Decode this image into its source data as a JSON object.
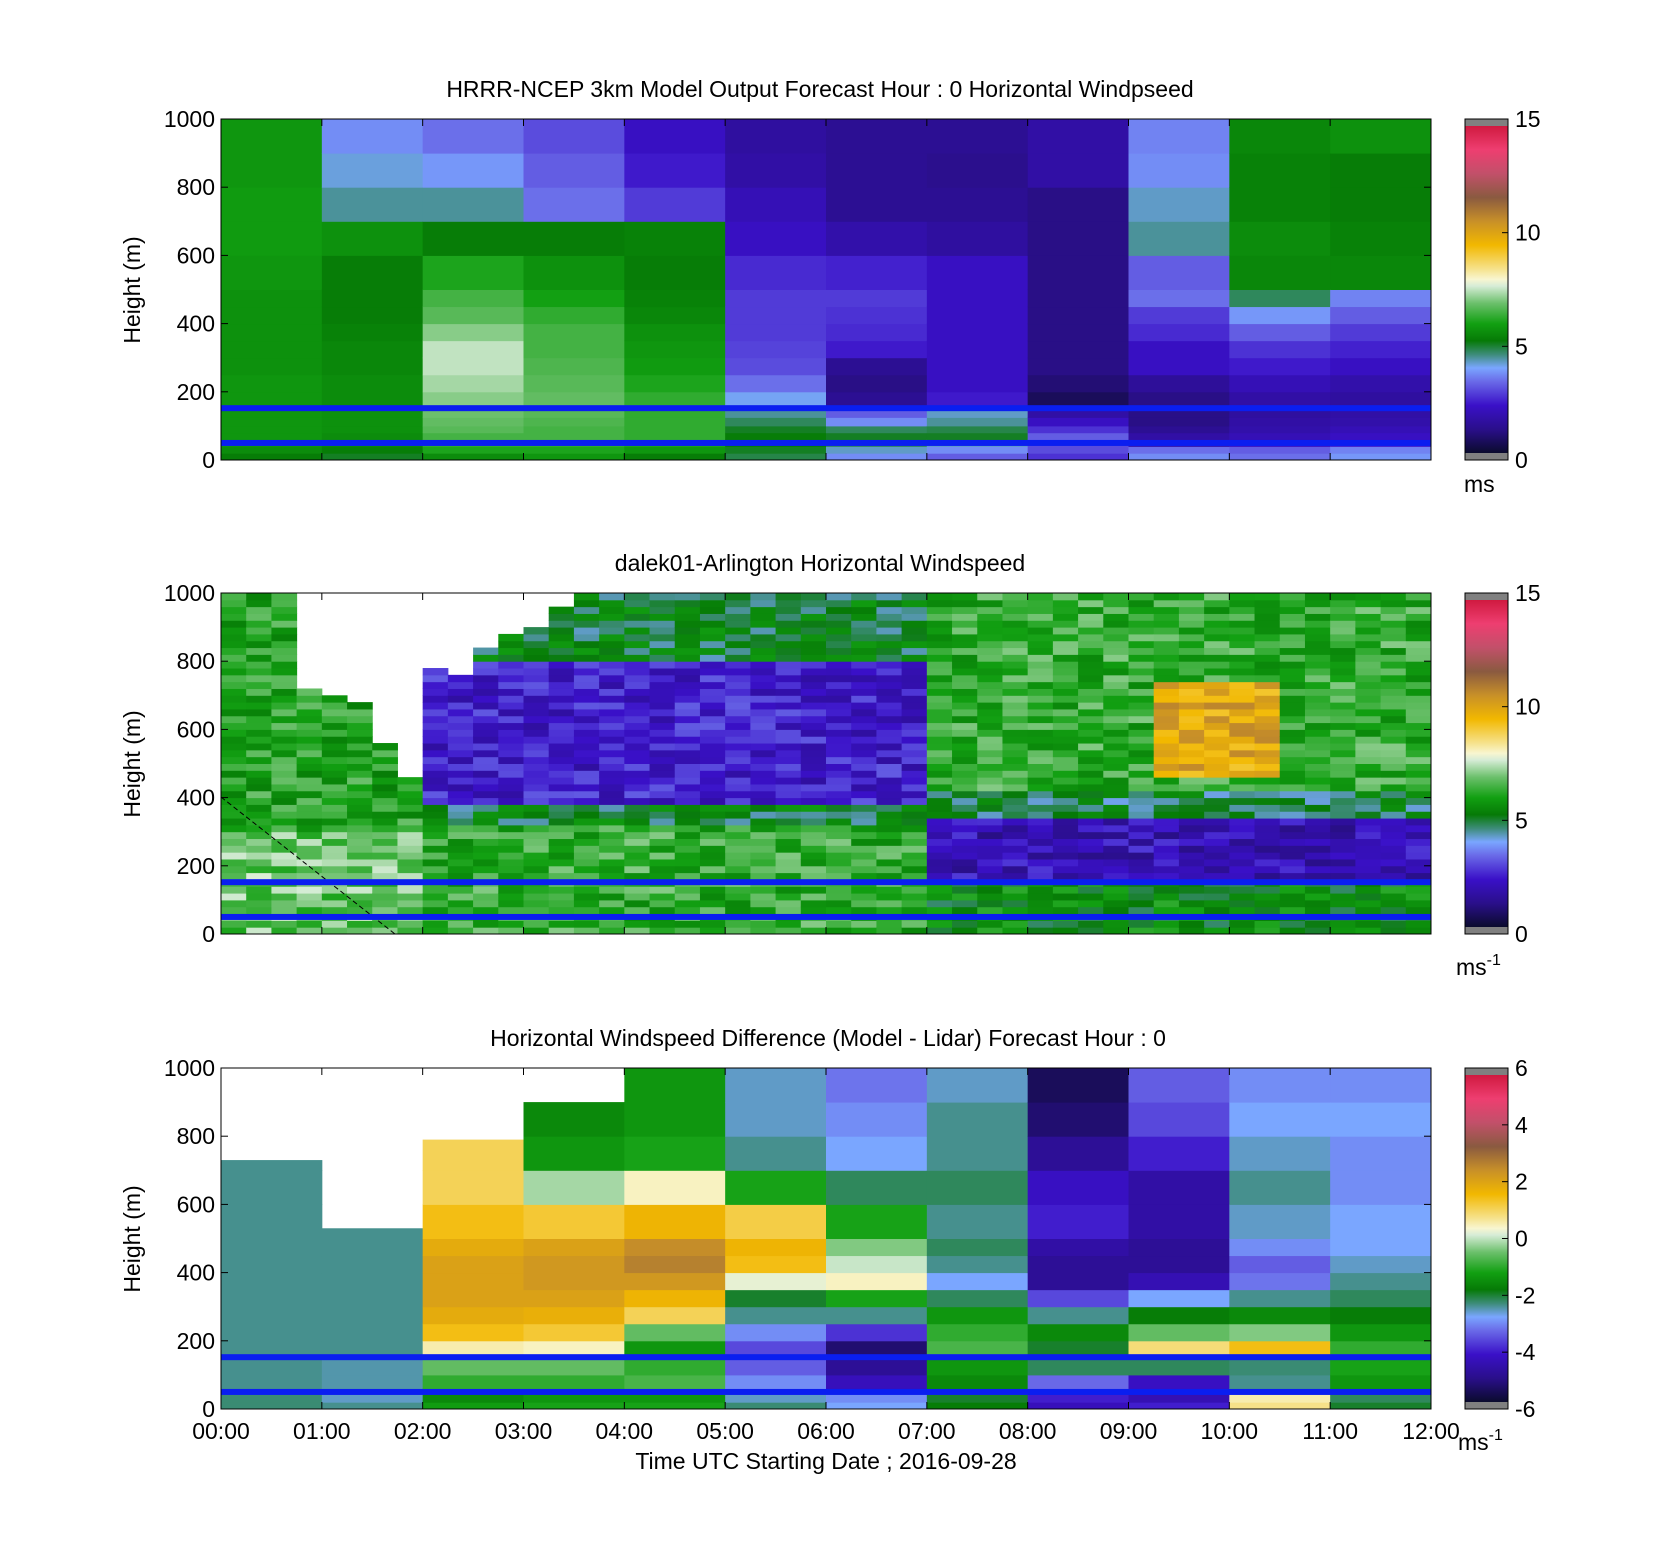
{
  "chart_data": [
    {
      "type": "heatmap",
      "title": "HRRR-NCEP 3km Model Output   Forecast Hour : 0 Horizontal Windpseed",
      "ylabel": "Height (m)",
      "xlabel": "",
      "y_ticks": [
        "0",
        "200",
        "400",
        "600",
        "800",
        "1000"
      ],
      "ylim": [
        0,
        1000
      ],
      "x_range_hours": [
        0,
        12
      ],
      "colorbar": {
        "min": 0,
        "max": 15,
        "ticks": [
          "0",
          "5",
          "10",
          "15"
        ],
        "unit": "ms",
        "unit_sup": ""
      },
      "reference_lines_m": [
        50,
        152
      ],
      "columns_hours": [
        0,
        1,
        2,
        3,
        4,
        5,
        6,
        7,
        8,
        9,
        10,
        11
      ],
      "levels_m": [
        20,
        40,
        60,
        80,
        100,
        125,
        150,
        200,
        250,
        300,
        350,
        400,
        450,
        500,
        600,
        700,
        800,
        900,
        1000
      ],
      "values_ms": [
        [
          5.0,
          4.8,
          5.3,
          5.5,
          5.0,
          4.6,
          3.5,
          3.0,
          2.5,
          3.5,
          3.2,
          3.6
        ],
        [
          5.3,
          5.0,
          5.8,
          5.8,
          5.5,
          4.8,
          4.0,
          3.5,
          2.8,
          3.2,
          3.0,
          3.4
        ],
        [
          5.5,
          5.2,
          6.0,
          6.0,
          5.8,
          5.0,
          4.5,
          4.0,
          2.8,
          1.6,
          2.0,
          2.2
        ],
        [
          5.5,
          5.3,
          6.2,
          6.2,
          6.0,
          5.0,
          4.8,
          4.8,
          3.0,
          1.5,
          1.8,
          2.0
        ],
        [
          5.5,
          5.4,
          6.4,
          6.2,
          6.0,
          4.8,
          4.5,
          4.6,
          2.5,
          1.2,
          1.6,
          1.8
        ],
        [
          5.5,
          5.4,
          6.5,
          6.3,
          6.0,
          4.5,
          3.5,
          4.2,
          2.0,
          1.0,
          1.5,
          1.6
        ],
        [
          5.5,
          5.4,
          6.6,
          6.4,
          6.0,
          4.2,
          3.0,
          4.0,
          1.5,
          1.0,
          1.4,
          1.5
        ],
        [
          5.5,
          5.3,
          6.8,
          6.5,
          6.0,
          3.8,
          1.2,
          2.2,
          0.5,
          1.0,
          1.5,
          1.4
        ],
        [
          5.5,
          5.3,
          7.0,
          6.4,
          5.8,
          3.2,
          1.0,
          2.0,
          0.8,
          1.3,
          1.8,
          1.6
        ],
        [
          5.4,
          5.2,
          7.2,
          6.3,
          5.6,
          2.8,
          1.2,
          2.0,
          1.0,
          2.0,
          2.2,
          2.0
        ],
        [
          5.4,
          5.2,
          7.2,
          6.2,
          5.5,
          2.7,
          2.2,
          2.0,
          1.0,
          2.0,
          2.5,
          2.3
        ],
        [
          5.4,
          5.1,
          6.8,
          6.2,
          5.4,
          2.6,
          2.4,
          2.0,
          1.0,
          2.4,
          3.0,
          2.6
        ],
        [
          5.4,
          5.0,
          6.4,
          6.0,
          5.2,
          2.6,
          2.5,
          2.0,
          1.0,
          2.6,
          3.6,
          3.0
        ],
        [
          5.4,
          5.0,
          6.2,
          5.7,
          5.1,
          2.6,
          2.6,
          2.0,
          1.0,
          3.2,
          4.5,
          3.4
        ],
        [
          5.5,
          5.0,
          5.8,
          5.4,
          5.0,
          2.4,
          2.3,
          2.0,
          1.0,
          3.0,
          5.2,
          5.2
        ],
        [
          5.6,
          5.4,
          5.0,
          5.0,
          5.1,
          2.0,
          1.6,
          1.4,
          1.0,
          4.2,
          5.3,
          5.1
        ],
        [
          5.6,
          4.2,
          4.2,
          3.2,
          2.6,
          1.8,
          1.2,
          1.2,
          1.0,
          4.0,
          5.1,
          5.0
        ],
        [
          5.5,
          3.9,
          3.6,
          3.0,
          2.2,
          1.5,
          1.2,
          1.1,
          1.5,
          3.5,
          5.1,
          5.0
        ],
        [
          5.5,
          3.5,
          3.2,
          2.8,
          2.0,
          1.4,
          1.2,
          1.2,
          1.5,
          3.4,
          5.2,
          5.4
        ]
      ]
    },
    {
      "type": "heatmap",
      "title": "dalek01-Arlington  Horizontal Windspeed",
      "ylabel": "Height (m)",
      "xlabel": "",
      "y_ticks": [
        "0",
        "200",
        "400",
        "600",
        "800",
        "1000"
      ],
      "ylim": [
        0,
        1000
      ],
      "x_range_hours": [
        0,
        12
      ],
      "colorbar": {
        "min": 0,
        "max": 15,
        "ticks": [
          "0",
          "5",
          "10",
          "15"
        ],
        "unit": "ms",
        "unit_sup": "-1"
      },
      "reference_lines_m": [
        50,
        152
      ],
      "profile_count": 48,
      "profile_step_hours": 0.25,
      "level_step_m": 20,
      "max_valid_height_profile": [
        1000,
        1000,
        1000,
        720,
        700,
        680,
        560,
        470,
        790,
        760,
        840,
        880,
        900,
        960,
        1000,
        1000,
        1000,
        1000,
        1000,
        1000,
        1000,
        1000,
        1000,
        1000,
        1000,
        1000,
        1000,
        1000,
        1000,
        1000,
        1000,
        1000,
        1000,
        1000,
        1000,
        1000,
        1000,
        1000,
        1000,
        1000,
        1000,
        1000,
        1000,
        1000,
        1000,
        1000,
        1000,
        1000
      ],
      "speed_model_ms": {
        "near_surface_layer_m": [
          0,
          300
        ],
        "low_speed_layer_m": [
          180,
          320
        ],
        "high_speed_core_hours": [
          9.2,
          10.5
        ],
        "high_speed_core_m": [
          450,
          750
        ],
        "high_speed_core_max_ms": 10
      }
    },
    {
      "type": "heatmap",
      "title": "Horizontal Windspeed Difference (Model - Lidar) Forecast Hour : 0",
      "ylabel": "Height (m)",
      "xlabel": "Time UTC  Starting Date ; 2016-09-28",
      "y_ticks": [
        "0",
        "200",
        "400",
        "600",
        "800",
        "1000"
      ],
      "x_ticks": [
        "00:00",
        "01:00",
        "02:00",
        "03:00",
        "04:00",
        "05:00",
        "06:00",
        "07:00",
        "08:00",
        "09:00",
        "10:00",
        "11:00",
        "12:00"
      ],
      "ylim": [
        0,
        1000
      ],
      "x_range_hours": [
        0,
        12
      ],
      "colorbar": {
        "min": -6,
        "max": 6,
        "ticks": [
          "-6",
          "-4",
          "-2",
          "0",
          "2",
          "4",
          "6"
        ],
        "unit": "ms",
        "unit_sup": "-1"
      },
      "reference_lines_m": [
        50,
        152
      ],
      "columns_hours": [
        0,
        1,
        2,
        3,
        4,
        5,
        6,
        7,
        8,
        9,
        10,
        11
      ],
      "column_top_m": [
        730,
        530,
        790,
        900,
        1000,
        1000,
        1000,
        1000,
        1000,
        1000,
        1000,
        1000
      ],
      "levels_m": [
        20,
        60,
        100,
        150,
        200,
        250,
        300,
        350,
        400,
        450,
        500,
        600,
        700,
        800,
        900,
        1000
      ],
      "diff_ms": [
        [
          -2.5,
          -2.6,
          -1.5,
          -1.4,
          -1.4,
          -2.5,
          -3.0,
          -2.0,
          -4.5,
          -4.2,
          0.5,
          -2.2
        ],
        [
          -2.5,
          -2.8,
          -1.8,
          -1.6,
          -1.6,
          -2.8,
          -3.2,
          -2.2,
          -4.2,
          -4.6,
          0.3,
          -2.4
        ],
        [
          -2.6,
          -2.7,
          -1.2,
          -1.2,
          -1.0,
          -3.2,
          -4.5,
          -1.8,
          -3.5,
          -4.4,
          -2.6,
          -1.6
        ],
        [
          -2.6,
          -2.7,
          -0.8,
          -0.8,
          -1.2,
          -3.6,
          -5.0,
          -1.6,
          -2.4,
          -2.4,
          -2.5,
          -1.4
        ],
        [
          -2.6,
          -2.6,
          0.3,
          0.2,
          -1.6,
          -3.8,
          -5.4,
          -1.0,
          -2.2,
          0.6,
          1.2,
          -1.2
        ],
        [
          -2.6,
          -2.6,
          1.2,
          1.0,
          -0.8,
          -3.2,
          -4.0,
          -1.2,
          -1.8,
          -0.8,
          -0.6,
          -1.6
        ],
        [
          -2.6,
          -2.6,
          1.6,
          1.5,
          0.8,
          -2.6,
          -2.6,
          -1.6,
          -2.6,
          -2.0,
          -1.8,
          -2.0
        ],
        [
          -2.6,
          -2.6,
          1.8,
          1.8,
          1.4,
          -2.2,
          -1.4,
          -2.4,
          -3.8,
          -3.0,
          -2.6,
          -2.4
        ],
        [
          -2.6,
          -2.6,
          1.8,
          2.0,
          2.0,
          0.0,
          0.2,
          -3.0,
          -5.0,
          -4.6,
          -3.4,
          -2.6
        ],
        [
          -2.6,
          -2.6,
          1.8,
          2.0,
          2.4,
          1.2,
          -0.2,
          -2.6,
          -5.0,
          -5.0,
          -3.6,
          -2.8
        ],
        [
          -2.6,
          -2.6,
          1.6,
          1.8,
          2.2,
          1.4,
          -0.6,
          -2.4,
          -4.8,
          -5.0,
          -3.2,
          -3.0
        ],
        [
          -2.6,
          -2.6,
          1.2,
          1.0,
          1.4,
          0.9,
          -1.4,
          -2.6,
          -4.2,
          -4.8,
          -2.8,
          -3.0
        ],
        [
          -2.6,
          -2.6,
          0.8,
          -0.4,
          0.2,
          -1.4,
          -2.4,
          -2.4,
          -4.4,
          -4.8,
          -2.6,
          -3.2
        ],
        [
          -2.6,
          -2.6,
          0.8,
          -1.6,
          -1.4,
          -2.6,
          -3.0,
          -2.6,
          -5.0,
          -4.2,
          -2.8,
          -3.2
        ],
        [
          -2.6,
          -2.6,
          0.8,
          -1.8,
          -1.6,
          -2.8,
          -3.2,
          -2.6,
          -5.4,
          -3.8,
          -3.0,
          -3.0
        ],
        [
          -2.6,
          -2.6,
          0.8,
          -1.8,
          -1.6,
          -2.8,
          -3.4,
          -2.8,
          -5.6,
          -3.6,
          -3.2,
          -3.2
        ]
      ]
    }
  ]
}
